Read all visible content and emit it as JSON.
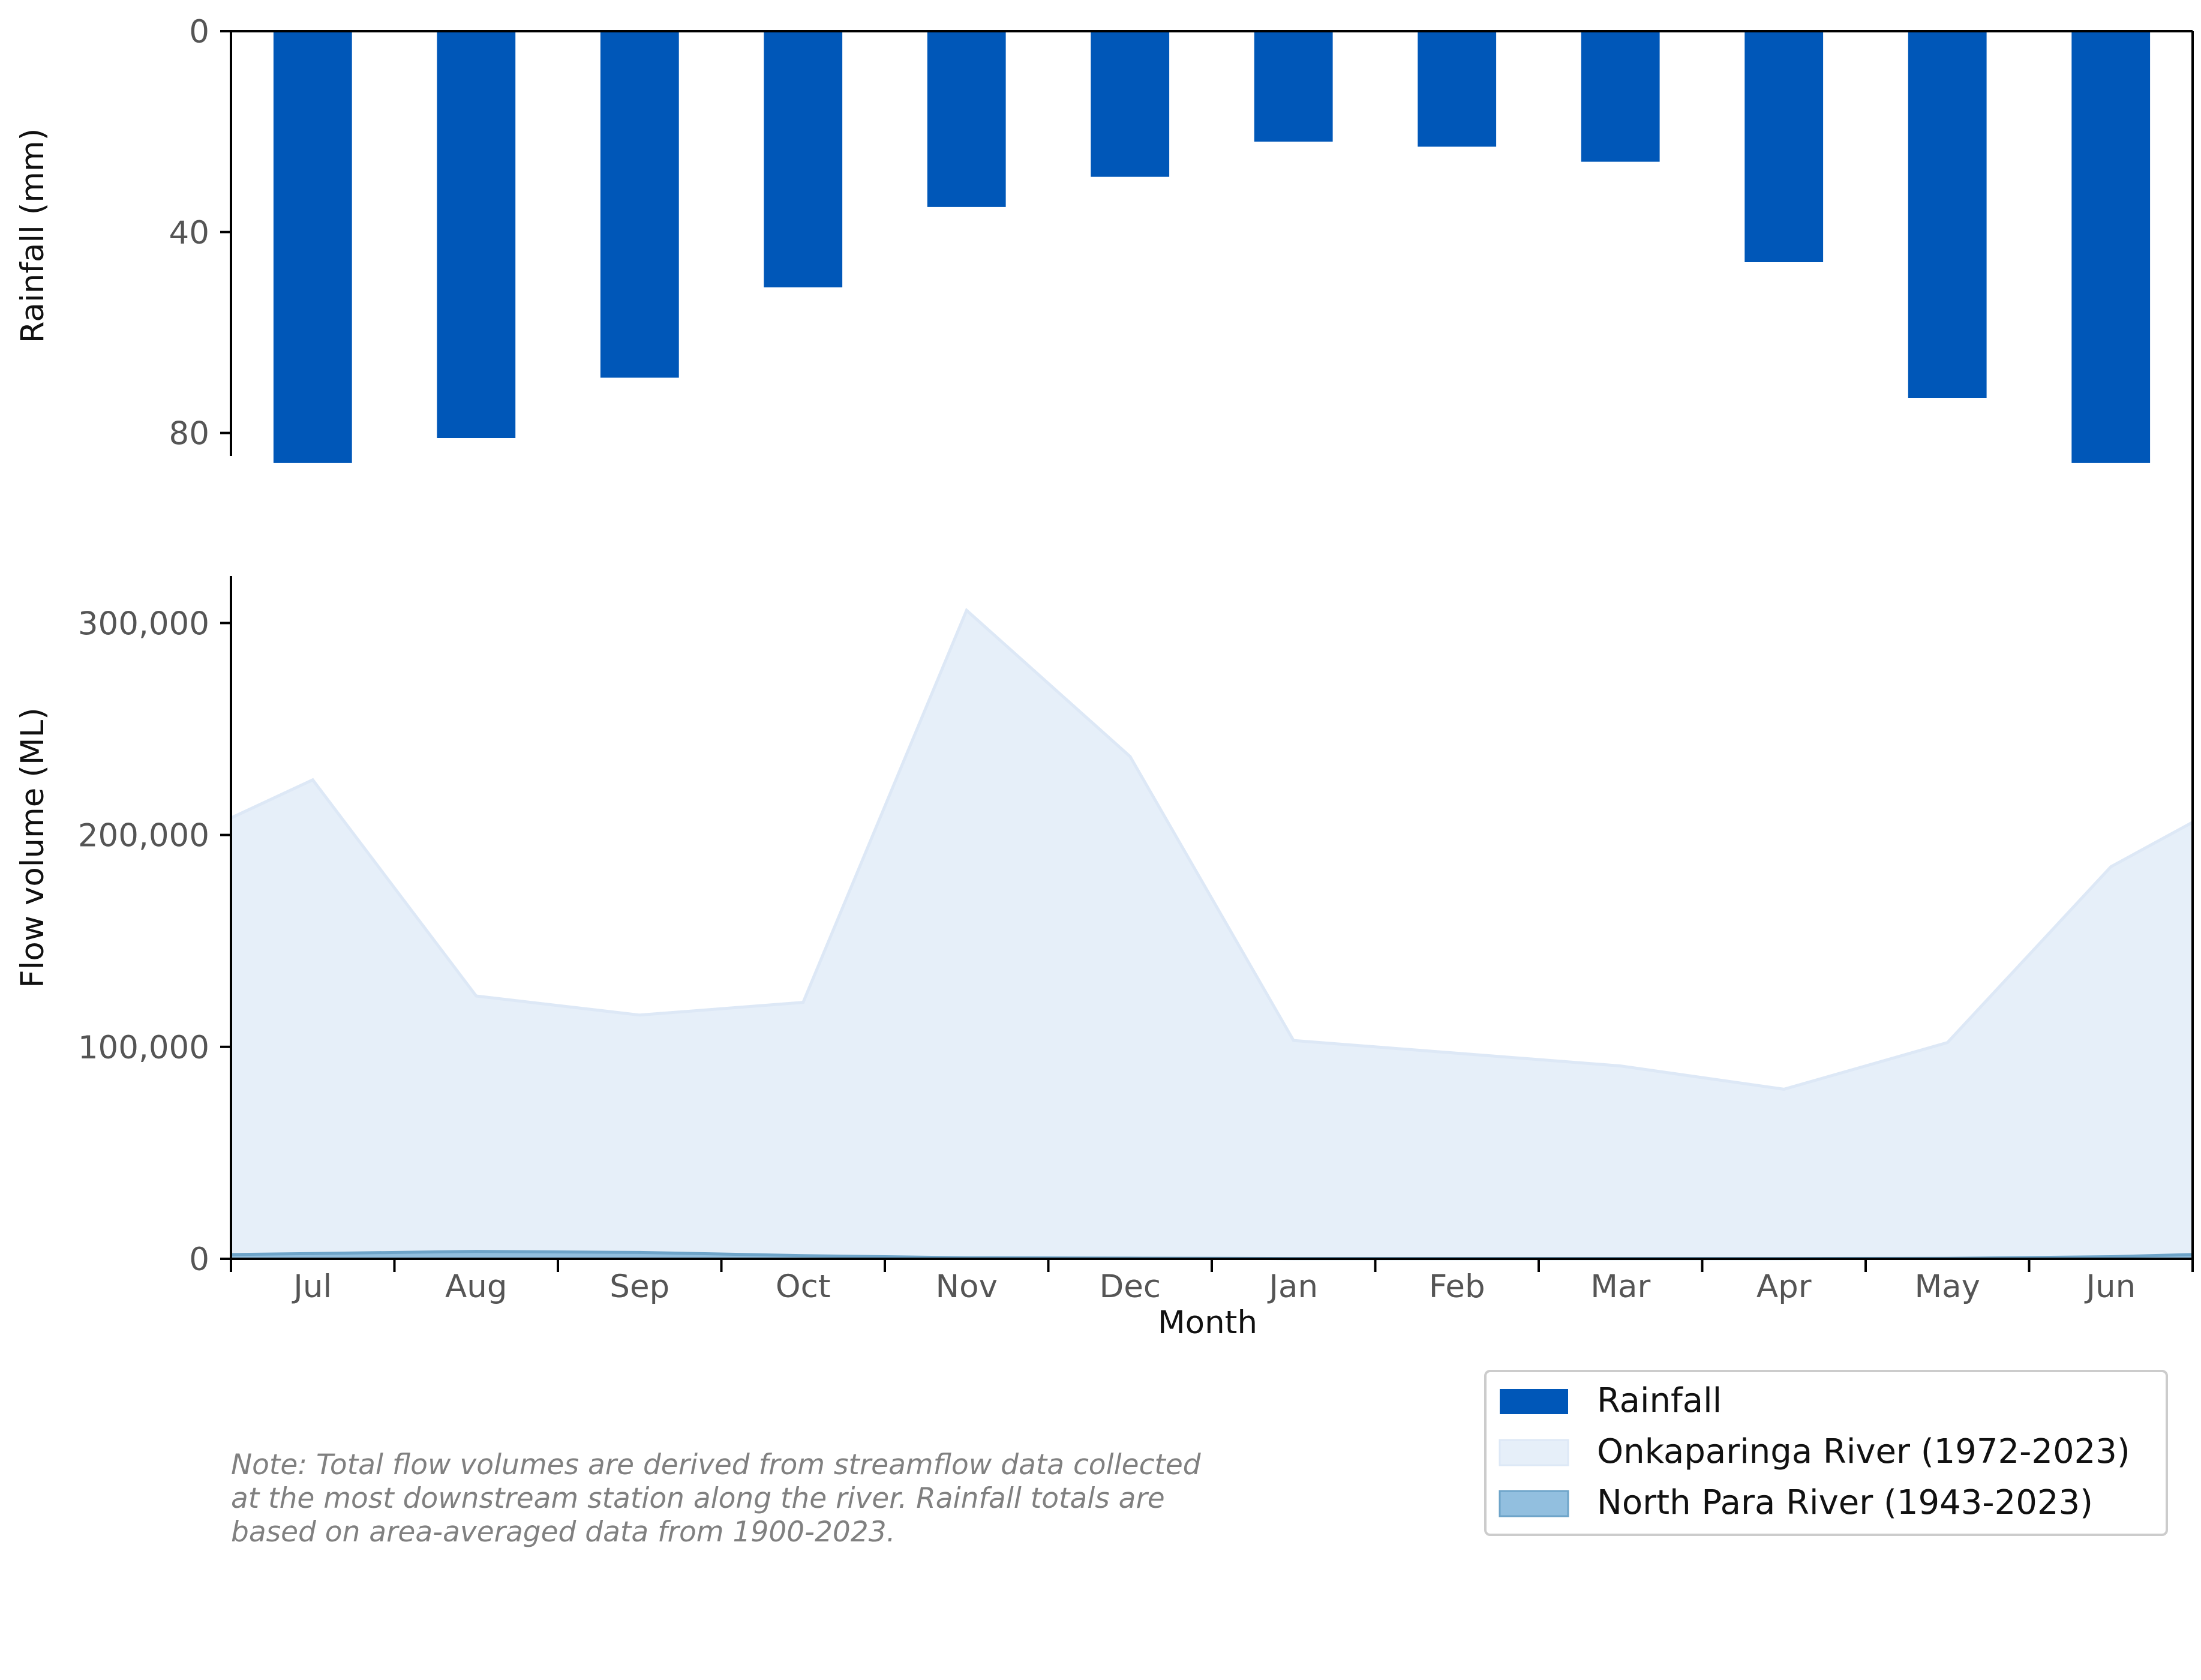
{
  "chart_data": {
    "type": "bar+area",
    "categories": [
      "Jul",
      "Aug",
      "Sep",
      "Oct",
      "Nov",
      "Dec",
      "Jan",
      "Feb",
      "Mar",
      "Apr",
      "May",
      "Jun"
    ],
    "xlabel": "Month",
    "rainfall": {
      "name": "Rainfall",
      "ylabel": "Rainfall (mm)",
      "ylim": [
        0,
        110
      ],
      "yticks": [
        0,
        40,
        80
      ],
      "ytick_labels": [
        "0",
        "40",
        "80"
      ],
      "inverted": true,
      "values": [
        86,
        81,
        69,
        51,
        35,
        29,
        22,
        23,
        26,
        46,
        73,
        86
      ]
    },
    "flow": {
      "ylabel": "Flow volume (ML)",
      "ylim": [
        0,
        345000
      ],
      "yticks": [
        0,
        100000,
        200000,
        300000
      ],
      "ytick_labels": [
        "0",
        "100,000",
        "200,000",
        "300,000"
      ],
      "series": [
        {
          "name": "Onkaparinga River (1972-2023)",
          "x": [
            0,
            1,
            2,
            3,
            4,
            5,
            6,
            7,
            8,
            9,
            10,
            11
          ],
          "values": [
            226000,
            124000,
            115000,
            121000,
            306000,
            237000,
            103000,
            97000,
            91000,
            80000,
            102000,
            185000
          ],
          "edge_left": 208000,
          "edge_right": 206000
        },
        {
          "name": "North Para River (1943-2023)",
          "x": [
            0,
            1,
            2,
            3,
            4,
            5,
            6,
            7,
            8,
            9,
            10,
            11
          ],
          "values": [
            2500,
            3500,
            3000,
            1500,
            500,
            300,
            100,
            100,
            100,
            100,
            200,
            1000
          ],
          "edge_left": 2000,
          "edge_right": 2000
        }
      ]
    },
    "legend_placement": "bottom-right",
    "grid": false,
    "note_lines": [
      "Note: Total flow volumes are derived from streamflow data collected",
      "at the most downstream station along the river. Rainfall totals are",
      "based on area-averaged data from 1900-2023."
    ]
  },
  "colors": {
    "rainfall": "#0057b8",
    "onkaparinga_fill": "#e6eff9",
    "onkaparinga_line": "#dde8f6",
    "north_para_fill": "#92bfdf",
    "north_para_line": "#6ea4c9",
    "axis": "#000000"
  },
  "legend": [
    {
      "label": "Rainfall",
      "swatch": "rainfall"
    },
    {
      "label": "Onkaparinga River (1972-2023)",
      "swatch": "onkaparinga"
    },
    {
      "label": "North Para River (1943-2023)",
      "swatch": "north_para"
    }
  ]
}
